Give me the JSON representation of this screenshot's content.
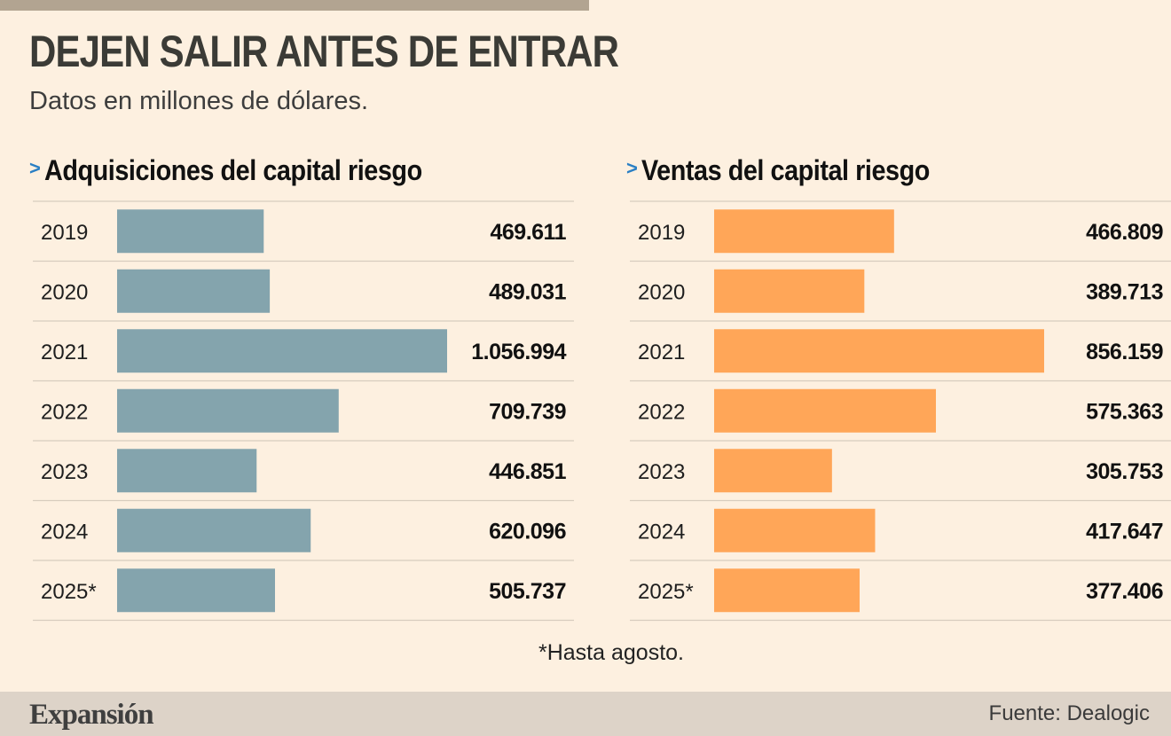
{
  "title": "DEJEN SALIR ANTES DE ENTRAR",
  "subtitle": "Datos en millones de dólares.",
  "note": "*Hasta agosto.",
  "brand": "Expansión",
  "source": "Fuente: Dealogic",
  "colors": {
    "adquisiciones": "#84a4ad",
    "ventas": "#ffa658",
    "chevron": "#2a7fc4"
  },
  "chart_data": [
    {
      "type": "bar",
      "orientation": "horizontal",
      "title": "Adquisiciones del capital riesgo",
      "categories": [
        "2019",
        "2020",
        "2021",
        "2022",
        "2023",
        "2024",
        "2025*"
      ],
      "values": [
        469611,
        489031,
        1056994,
        709739,
        446851,
        620096,
        505737
      ],
      "value_labels": [
        "469.611",
        "489.031",
        "1.056.994",
        "709.739",
        "446.851",
        "620.096",
        "505.737"
      ],
      "xlim": [
        0,
        1056994
      ],
      "unit": "millones de dólares"
    },
    {
      "type": "bar",
      "orientation": "horizontal",
      "title": "Ventas del capital riesgo",
      "categories": [
        "2019",
        "2020",
        "2021",
        "2022",
        "2023",
        "2024",
        "2025*"
      ],
      "values": [
        466809,
        389713,
        856159,
        575363,
        305753,
        417647,
        377406
      ],
      "value_labels": [
        "466.809",
        "389.713",
        "856.159",
        "575.363",
        "305.753",
        "417.647",
        "377.406"
      ],
      "xlim": [
        0,
        856159
      ],
      "unit": "millones de dólares"
    }
  ]
}
